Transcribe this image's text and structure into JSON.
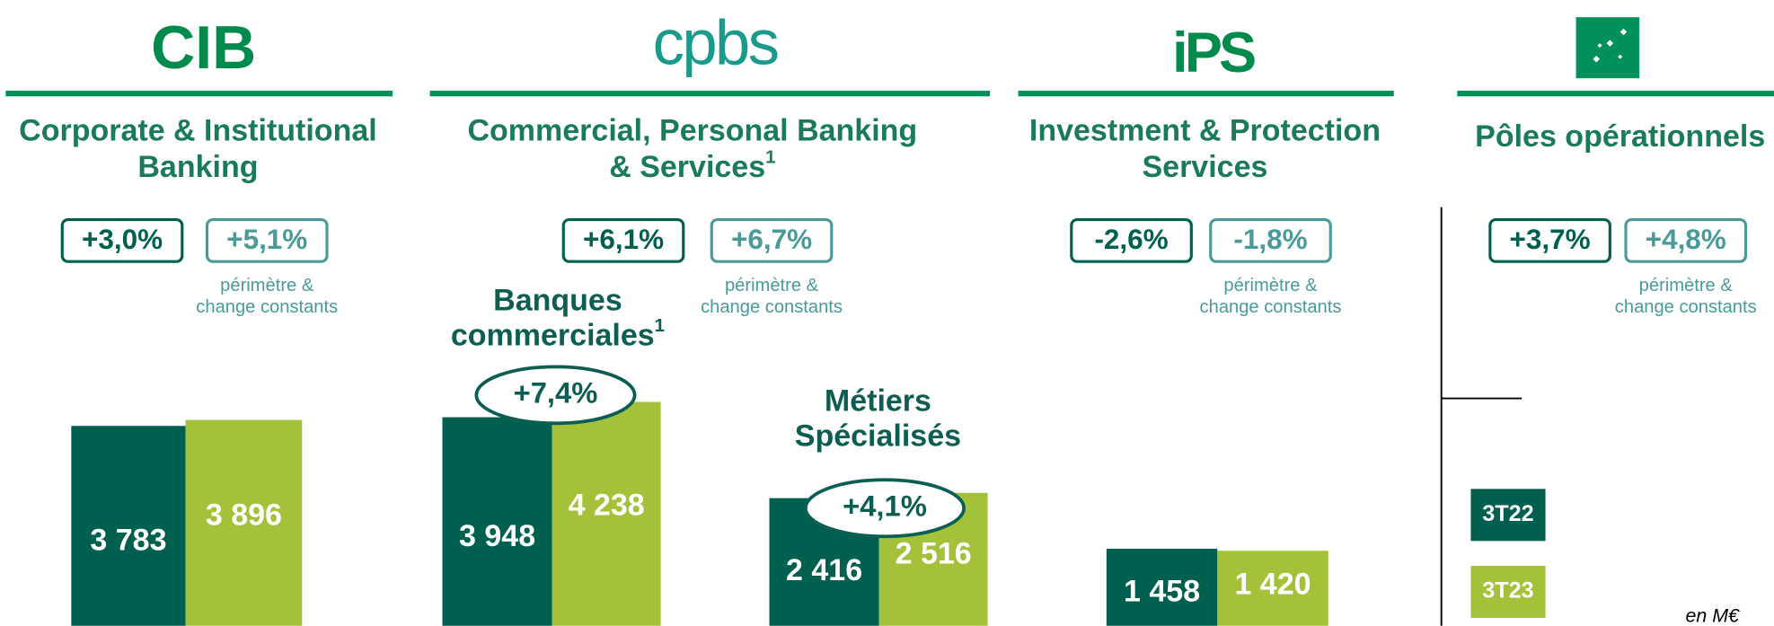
{
  "logos": {
    "cib": "CIB",
    "cpbs": "cpbs",
    "ips": "iPS"
  },
  "colors": [
    "#00604f",
    "#a3c23a"
  ],
  "panels": [
    {
      "title_lines": [
        "Corporate & Institutional",
        "Banking"
      ],
      "badges": [
        "+3,0%",
        "+5,1%"
      ],
      "note_lines": [
        "périmètre &",
        "change constants"
      ],
      "groups": [
        {
          "values": [
            3783,
            3896
          ],
          "value_labels": [
            "3 783",
            "3 896"
          ]
        }
      ]
    },
    {
      "title_lines": [
        "Commercial, Personal Banking",
        "& Services"
      ],
      "title_sup": "1",
      "badges": [
        "+6,1%",
        "+6,7%"
      ],
      "note_lines": [
        "périmètre &",
        "change constants"
      ],
      "groups": [
        {
          "name_lines": [
            "Banques",
            "commerciales"
          ],
          "name_sup": "1",
          "growth": "+7,4%",
          "values": [
            3948,
            4238
          ],
          "value_labels": [
            "3 948",
            "4 238"
          ]
        },
        {
          "name_lines": [
            "Métiers",
            "Spécialisés"
          ],
          "growth": "+4,1%",
          "values": [
            2416,
            2516
          ],
          "value_labels": [
            "2 416",
            "2 516"
          ]
        }
      ]
    },
    {
      "title_lines": [
        "Investment & Protection",
        "Services"
      ],
      "badges": [
        "-2,6%",
        "-1,8%"
      ],
      "note_lines": [
        "périmètre &",
        "change constants"
      ],
      "groups": [
        {
          "values": [
            1458,
            1420
          ],
          "value_labels": [
            "1 458",
            "1 420"
          ]
        }
      ]
    },
    {
      "title_lines": [
        "Pôles opérationnels"
      ],
      "badges": [
        "+3,7%",
        "+4,8%"
      ],
      "note_lines": [
        "périmètre &",
        "change constants"
      ]
    }
  ],
  "legend": [
    "3T22",
    "3T23"
  ],
  "unit": "en M€"
}
